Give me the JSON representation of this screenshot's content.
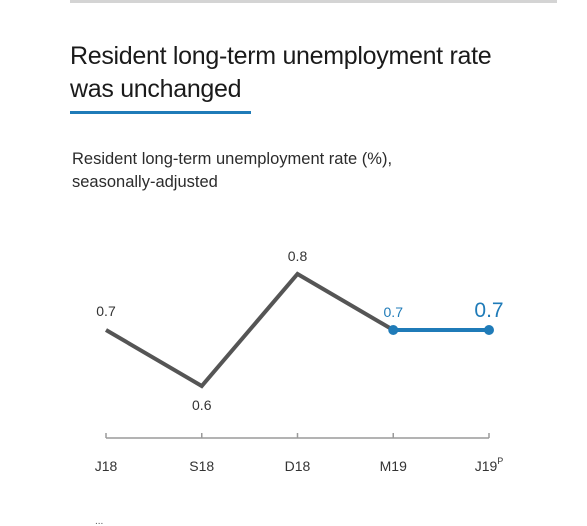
{
  "headline": {
    "line1": "Resident long-term unemployment rate",
    "line2": "was unchanged"
  },
  "subtitle": {
    "line1": "Resident long-term unemployment rate (%),",
    "line2": "seasonally-adjusted"
  },
  "chart_data": {
    "type": "line",
    "title": "Resident long-term unemployment rate (%), seasonally-adjusted",
    "categories": [
      "J18",
      "S18",
      "D18",
      "M19",
      "J19"
    ],
    "category_superscripts": [
      "",
      "",
      "",
      "",
      "P"
    ],
    "series": [
      {
        "values": [
          0.7,
          0.6,
          0.8,
          0.7,
          0.7
        ],
        "labels": [
          "0.7",
          "0.6",
          "0.8",
          "0.7",
          "0.7"
        ],
        "color_history": "#555555",
        "color_recent": "#1f7bb8",
        "highlight_from_index": 3
      }
    ],
    "ylim": [
      0.5,
      0.9
    ],
    "xlabel": "",
    "ylabel": "",
    "grid": false,
    "legend": "none"
  },
  "footnote": "..."
}
